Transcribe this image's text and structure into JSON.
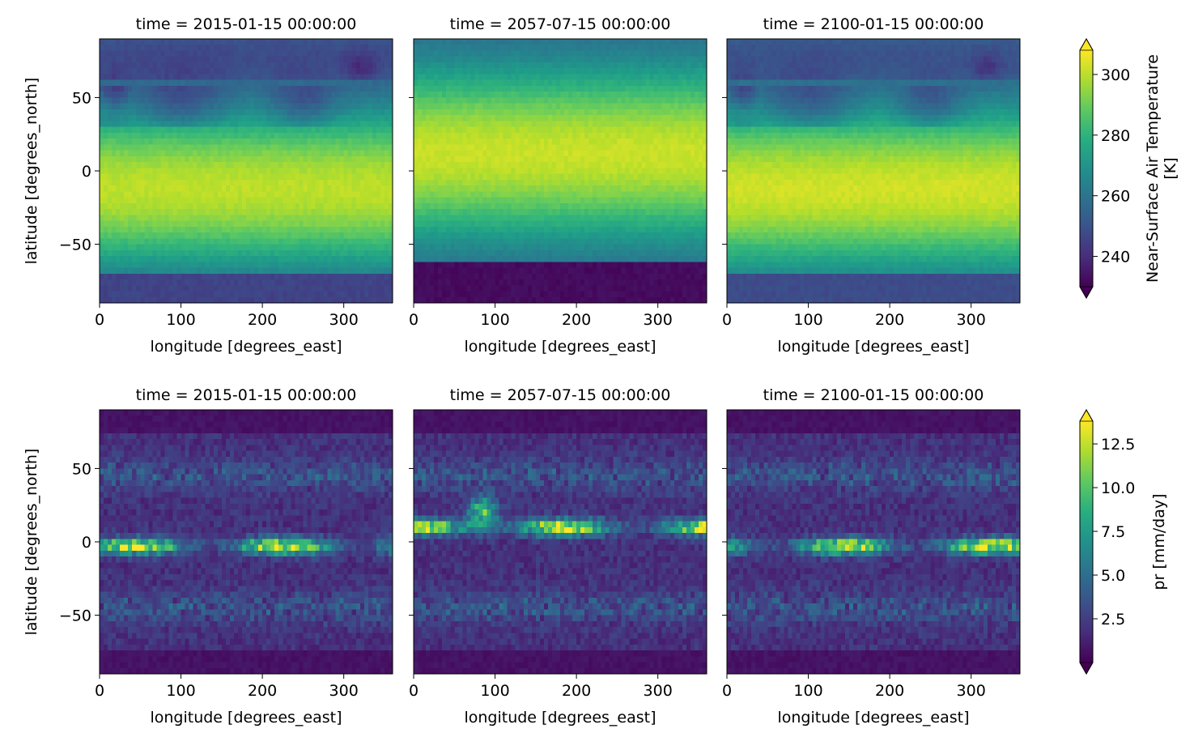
{
  "chart_data": [
    {
      "type": "heatmap",
      "title": "time = 2015-01-15 00:00:00",
      "xlabel": "longitude [degrees_east]",
      "ylabel": "latitude [degrees_north]",
      "xlim": [
        0,
        360
      ],
      "ylim": [
        -90,
        90
      ],
      "xticks": [
        0,
        100,
        200,
        300
      ],
      "yticks": [
        50,
        0,
        -50
      ],
      "variable": "tas",
      "colormap": "viridis"
    },
    {
      "type": "heatmap",
      "title": "time = 2057-07-15 00:00:00",
      "xlabel": "longitude [degrees_east]",
      "ylabel": "",
      "xlim": [
        0,
        360
      ],
      "ylim": [
        -90,
        90
      ],
      "xticks": [
        0,
        100,
        200,
        300
      ],
      "yticks": [],
      "variable": "tas",
      "colormap": "viridis"
    },
    {
      "type": "heatmap",
      "title": "time = 2100-01-15 00:00:00",
      "xlabel": "longitude [degrees_east]",
      "ylabel": "",
      "xlim": [
        0,
        360
      ],
      "ylim": [
        -90,
        90
      ],
      "xticks": [
        0,
        100,
        200,
        300
      ],
      "yticks": [],
      "variable": "tas",
      "colormap": "viridis"
    },
    {
      "type": "heatmap",
      "title": "time = 2015-01-15 00:00:00",
      "xlabel": "longitude [degrees_east]",
      "ylabel": "latitude [degrees_north]",
      "xlim": [
        0,
        360
      ],
      "ylim": [
        -90,
        90
      ],
      "xticks": [
        0,
        100,
        200,
        300
      ],
      "yticks": [
        50,
        0,
        -50
      ],
      "variable": "pr",
      "colormap": "viridis"
    },
    {
      "type": "heatmap",
      "title": "time = 2057-07-15 00:00:00",
      "xlabel": "longitude [degrees_east]",
      "ylabel": "",
      "xlim": [
        0,
        360
      ],
      "ylim": [
        -90,
        90
      ],
      "xticks": [
        0,
        100,
        200,
        300
      ],
      "yticks": [],
      "variable": "pr",
      "colormap": "viridis"
    },
    {
      "type": "heatmap",
      "title": "time = 2100-01-15 00:00:00",
      "xlabel": "longitude [degrees_east]",
      "ylabel": "",
      "xlim": [
        0,
        360
      ],
      "ylim": [
        -90,
        90
      ],
      "xticks": [
        0,
        100,
        200,
        300
      ],
      "yticks": [],
      "variable": "pr",
      "colormap": "viridis"
    }
  ],
  "colorbars": [
    {
      "label_lines": [
        "Near-Surface Air Temperature",
        "[K]"
      ],
      "vmin": 230,
      "vmax": 308,
      "ticks": [
        240,
        260,
        280,
        300
      ],
      "tick_labels": [
        "240",
        "260",
        "280",
        "300"
      ],
      "extend": "both",
      "colormap": "viridis"
    },
    {
      "label_lines": [
        "pr [mm/day]"
      ],
      "vmin": 0,
      "vmax": 13.8,
      "ticks": [
        2.5,
        5.0,
        7.5,
        10.0,
        12.5
      ],
      "tick_labels": [
        "2.5",
        "5.0",
        "7.5",
        "10.0",
        "12.5"
      ],
      "extend": "both",
      "colormap": "viridis"
    }
  ]
}
